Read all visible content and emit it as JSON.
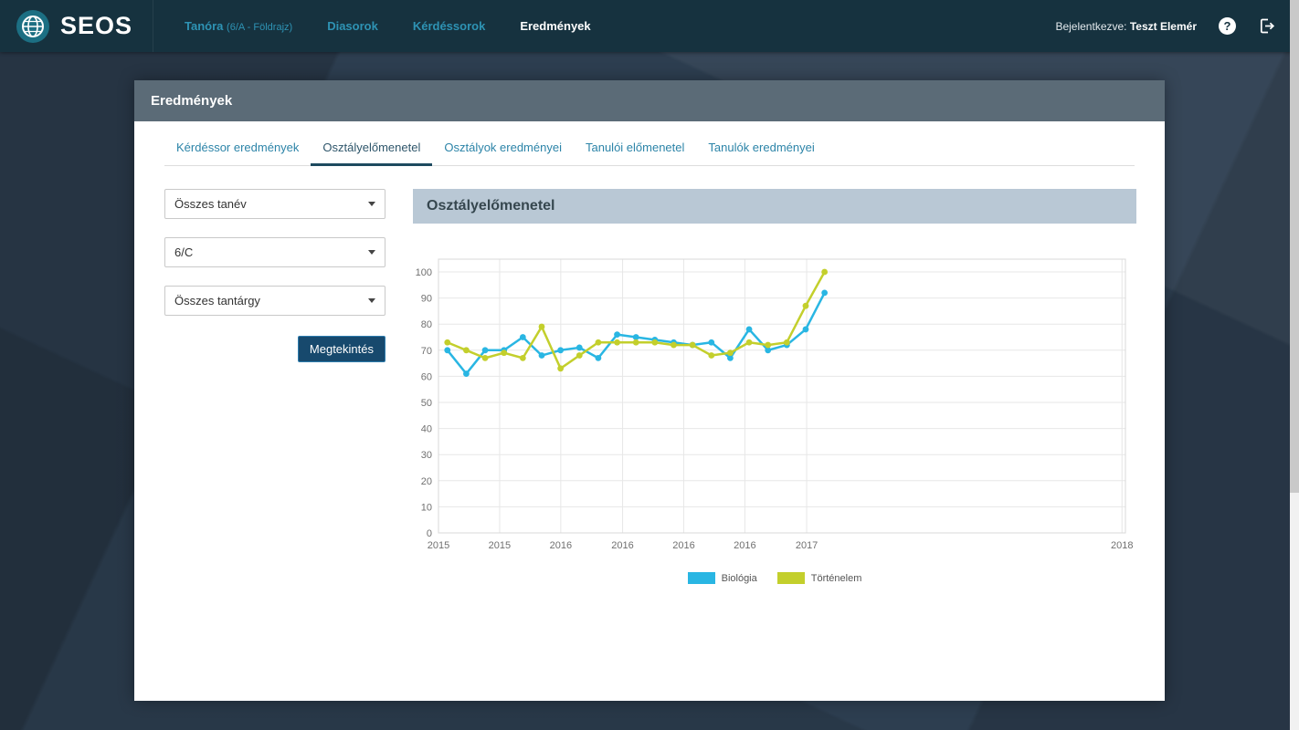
{
  "topbar": {
    "brand": "SEOS",
    "nav": [
      {
        "label": "Tanóra",
        "suffix": "(6/A - Földrajz)"
      },
      {
        "label": "Diasorok"
      },
      {
        "label": "Kérdéssorok"
      },
      {
        "label": "Eredmények",
        "active": true
      }
    ],
    "user_prefix": "Bejelentkezve:",
    "user_name": "Teszt Elemér",
    "help_label": "?"
  },
  "panel": {
    "title": "Eredmények",
    "tabs": [
      {
        "label": "Kérdéssor eredmények"
      },
      {
        "label": "Osztályelőmenetel",
        "active": true
      },
      {
        "label": "Osztályok eredményei"
      },
      {
        "label": "Tanulói előmenetel"
      },
      {
        "label": "Tanulók eredményei"
      }
    ],
    "filters": {
      "year_select": "Összes tanév",
      "class_select": "6/C",
      "subject_select": "Összes tantárgy",
      "submit_label": "Megtekintés"
    },
    "chart_title": "Osztályelőmenetel"
  },
  "colors": {
    "topbar_bg": "#16323f",
    "accent_teal": "#2e93b4",
    "card_header_bg": "#5b6b77",
    "chart_header_bg": "#b9c8d5",
    "button_bg": "#17496d",
    "series_biologia": "#29b6e3",
    "series_tortenelem": "#c3cf2c"
  },
  "chart_data": {
    "type": "line",
    "title": "Osztályelőmenetel",
    "ylim": [
      0,
      100
    ],
    "grid": true,
    "legend_position": "bottom",
    "y_ticks": [
      0,
      10,
      20,
      30,
      40,
      50,
      60,
      70,
      80,
      90,
      100
    ],
    "x_ticks": [
      {
        "label": "2015",
        "pos": 0.0
      },
      {
        "label": "2015",
        "pos": 0.089
      },
      {
        "label": "2016",
        "pos": 0.178
      },
      {
        "label": "2016",
        "pos": 0.268
      },
      {
        "label": "2016",
        "pos": 0.357
      },
      {
        "label": "2016",
        "pos": 0.446
      },
      {
        "label": "2017",
        "pos": 0.536
      },
      {
        "label": "2018",
        "pos": 0.995
      }
    ],
    "x_data_span": [
      0.013,
      0.562
    ],
    "series": [
      {
        "name": "Biológia",
        "color": "#29b6e3",
        "values": [
          70,
          61,
          70,
          70,
          75,
          68,
          70,
          71,
          67,
          76,
          75,
          74,
          73,
          72,
          73,
          67,
          78,
          70,
          72,
          78,
          92
        ]
      },
      {
        "name": "Történelem",
        "color": "#c3cf2c",
        "values": [
          73,
          70,
          67,
          69,
          67,
          79,
          63,
          68,
          73,
          73,
          73,
          73,
          72,
          72,
          68,
          69,
          73,
          72,
          73,
          87,
          100
        ]
      }
    ]
  }
}
